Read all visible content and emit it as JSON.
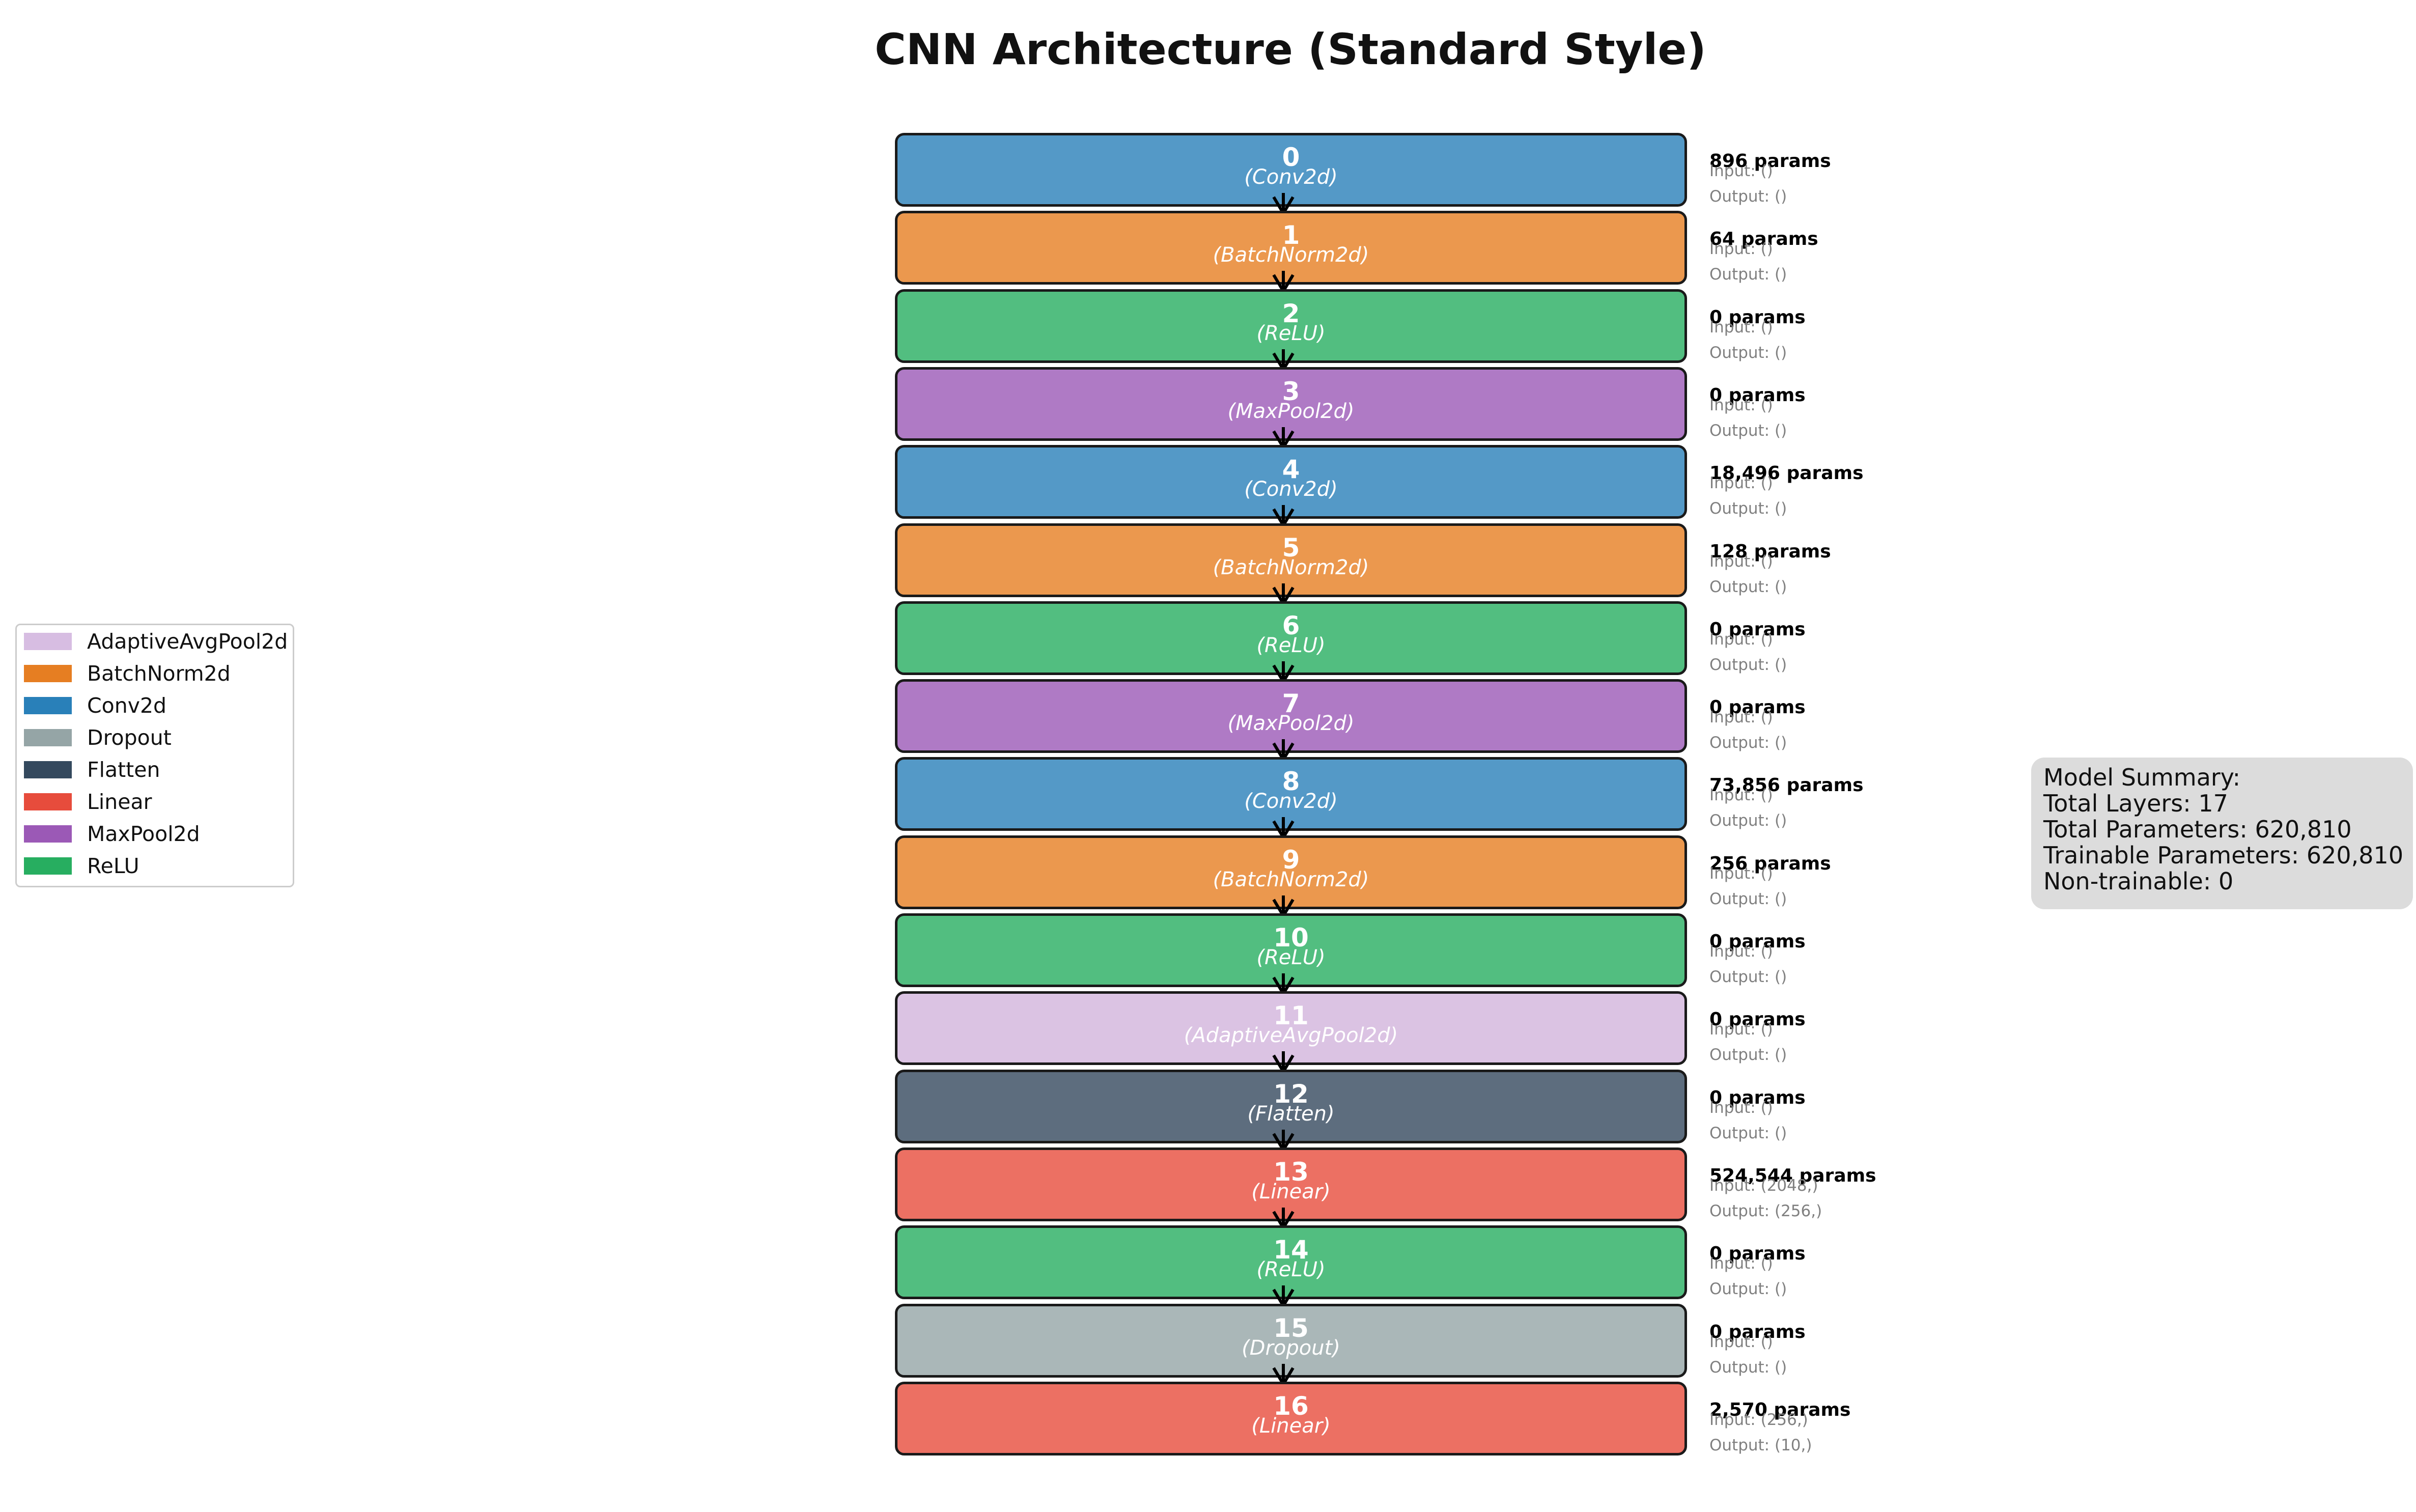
{
  "title": "CNN Architecture (Standard Style)",
  "colors": {
    "Conv2d": "#5499c7",
    "BatchNorm2d": "#eb984e",
    "ReLU": "#52be80",
    "MaxPool2d": "#af7ac5",
    "AdaptiveAvgPool2d": "#dbc3e3",
    "Flatten": "#5d6d7e",
    "Linear": "#ec7063",
    "Dropout": "#aab7b8"
  },
  "layers": [
    {
      "index": "0",
      "type": "(Conv2d)",
      "kind": "Conv2d",
      "params": "896 params",
      "input": "Input: ()",
      "output": "Output: ()"
    },
    {
      "index": "1",
      "type": "(BatchNorm2d)",
      "kind": "BatchNorm2d",
      "params": "64 params",
      "input": "Input: ()",
      "output": "Output: ()"
    },
    {
      "index": "2",
      "type": "(ReLU)",
      "kind": "ReLU",
      "params": "0 params",
      "input": "Input: ()",
      "output": "Output: ()"
    },
    {
      "index": "3",
      "type": "(MaxPool2d)",
      "kind": "MaxPool2d",
      "params": "0 params",
      "input": "Input: ()",
      "output": "Output: ()"
    },
    {
      "index": "4",
      "type": "(Conv2d)",
      "kind": "Conv2d",
      "params": "18,496 params",
      "input": "Input: ()",
      "output": "Output: ()"
    },
    {
      "index": "5",
      "type": "(BatchNorm2d)",
      "kind": "BatchNorm2d",
      "params": "128 params",
      "input": "Input: ()",
      "output": "Output: ()"
    },
    {
      "index": "6",
      "type": "(ReLU)",
      "kind": "ReLU",
      "params": "0 params",
      "input": "Input: ()",
      "output": "Output: ()"
    },
    {
      "index": "7",
      "type": "(MaxPool2d)",
      "kind": "MaxPool2d",
      "params": "0 params",
      "input": "Input: ()",
      "output": "Output: ()"
    },
    {
      "index": "8",
      "type": "(Conv2d)",
      "kind": "Conv2d",
      "params": "73,856 params",
      "input": "Input: ()",
      "output": "Output: ()"
    },
    {
      "index": "9",
      "type": "(BatchNorm2d)",
      "kind": "BatchNorm2d",
      "params": "256 params",
      "input": "Input: ()",
      "output": "Output: ()"
    },
    {
      "index": "10",
      "type": "(ReLU)",
      "kind": "ReLU",
      "params": "0 params",
      "input": "Input: ()",
      "output": "Output: ()"
    },
    {
      "index": "11",
      "type": "(AdaptiveAvgPool2d)",
      "kind": "AdaptiveAvgPool2d",
      "params": "0 params",
      "input": "Input: ()",
      "output": "Output: ()"
    },
    {
      "index": "12",
      "type": "(Flatten)",
      "kind": "Flatten",
      "params": "0 params",
      "input": "Input: ()",
      "output": "Output: ()"
    },
    {
      "index": "13",
      "type": "(Linear)",
      "kind": "Linear",
      "params": "524,544 params",
      "input": "Input: (2048,)",
      "output": "Output: (256,)"
    },
    {
      "index": "14",
      "type": "(ReLU)",
      "kind": "ReLU",
      "params": "0 params",
      "input": "Input: ()",
      "output": "Output: ()"
    },
    {
      "index": "15",
      "type": "(Dropout)",
      "kind": "Dropout",
      "params": "0 params",
      "input": "Input: ()",
      "output": "Output: ()"
    },
    {
      "index": "16",
      "type": "(Linear)",
      "kind": "Linear",
      "params": "2,570 params",
      "input": "Input: (256,)",
      "output": "Output: (10,)"
    }
  ],
  "legend": {
    "items": [
      {
        "label": "AdaptiveAvgPool2d",
        "color": "#d7bde2"
      },
      {
        "label": "BatchNorm2d",
        "color": "#e67e22"
      },
      {
        "label": "Conv2d",
        "color": "#2980b9"
      },
      {
        "label": "Dropout",
        "color": "#95a5a6"
      },
      {
        "label": "Flatten",
        "color": "#34495e"
      },
      {
        "label": "Linear",
        "color": "#e74c3c"
      },
      {
        "label": "MaxPool2d",
        "color": "#9b59b6"
      },
      {
        "label": "ReLU",
        "color": "#27ae60"
      }
    ]
  },
  "summary": {
    "heading": "Model Summary:",
    "total_layers": "Total Layers: 17",
    "total_params": "Total Parameters: 620,810",
    "trainable_params": "Trainable Parameters: 620,810",
    "non_trainable": "Non-trainable: 0"
  }
}
